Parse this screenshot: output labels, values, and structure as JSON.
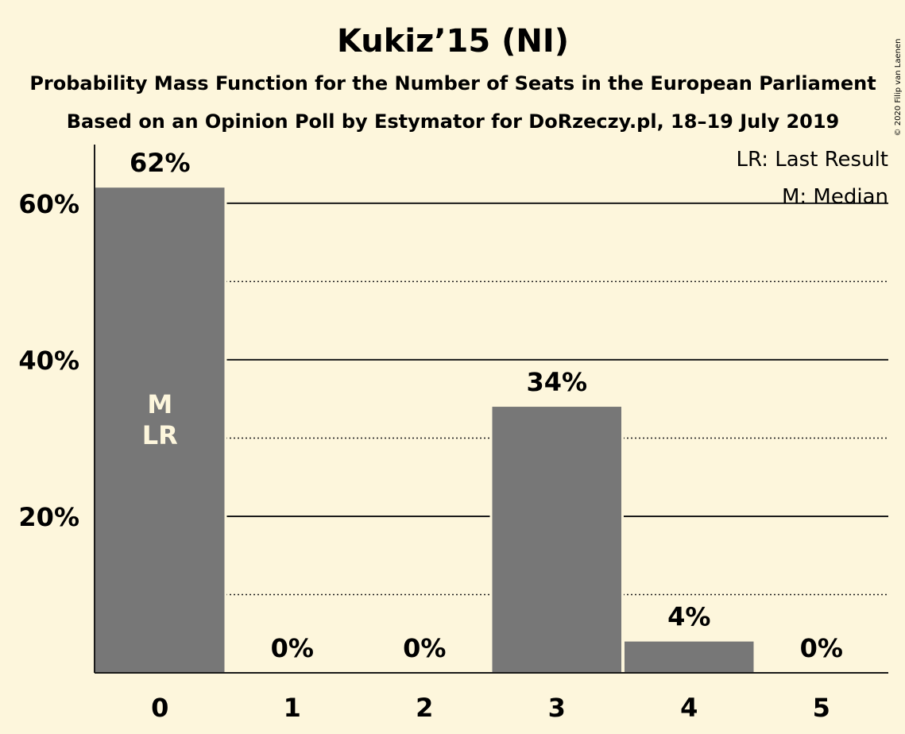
{
  "chart_data": {
    "type": "bar",
    "title": "Kukiz’15 (NI)",
    "subtitle": "Probability Mass Function for the Number of Seats in the European Parliament",
    "subtitle2": "Based on an Opinion Poll by Estymator for DoRzeczy.pl, 18–19 July 2019",
    "categories": [
      "0",
      "1",
      "2",
      "3",
      "4",
      "5"
    ],
    "values": [
      62,
      0,
      0,
      34,
      4,
      0
    ],
    "value_labels": [
      "62%",
      "0%",
      "0%",
      "34%",
      "4%",
      "0%"
    ],
    "ylim": [
      0,
      67.5
    ],
    "yticks": [
      20,
      40,
      60
    ],
    "ytick_labels": [
      "20%",
      "40%",
      "60%"
    ],
    "minor_gridlines": [
      10,
      30,
      50
    ],
    "bar_color": "#777777",
    "background_color": "#fdf6dc",
    "median_index": 0,
    "last_result_index": 0,
    "in_bar_marks": [
      "M",
      "LR"
    ],
    "legend": [
      "LR: Last Result",
      "M: Median"
    ],
    "legend_position": "top-right",
    "copyright": "© 2020 Filip van Laenen"
  }
}
